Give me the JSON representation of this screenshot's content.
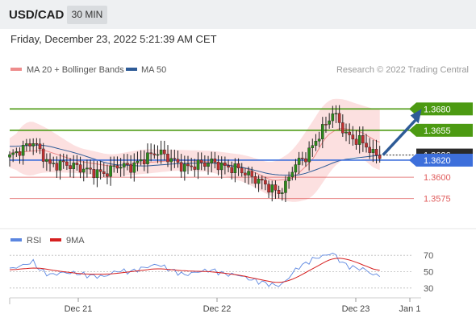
{
  "header": {
    "symbol": "USD/CAD",
    "timeframe": "30 MIN",
    "timestamp": "Friday, December 23, 2022 5:21:39 AM CET"
  },
  "colors": {
    "ma20": "#ee8c8c",
    "bollinger": "#fbdada",
    "ma50": "#2e5b97",
    "resistance": "#4c9a12",
    "support": "#e05c5c",
    "pivot": "#3d6fdb",
    "arrow": "#2e5b97",
    "bull": "#2d8a1a",
    "bear": "#c03030",
    "rsi": "#5b86e0",
    "rsi_ma": "#d62020"
  },
  "chart_data": [
    {
      "type": "candlestick",
      "title": "USD/CAD 30 MIN",
      "legend": [
        {
          "name": "MA 20 + Bollinger Bands",
          "color": "#ee8c8c"
        },
        {
          "name": "MA 50",
          "color": "#2e5b97"
        }
      ],
      "legend_position": "top-left",
      "credit": "Research © 2022 Trading Central",
      "y_range": [
        1.3553,
        1.3702
      ],
      "levels": [
        {
          "label": "1.3680",
          "value": 1.368,
          "type": "resistance"
        },
        {
          "label": "1.3655",
          "value": 1.3655,
          "type": "resistance"
        },
        {
          "label": "1.3626",
          "value": 1.3626,
          "type": "last"
        },
        {
          "label": "1.3620",
          "value": 1.362,
          "type": "pivot"
        },
        {
          "label": "1.3600",
          "value": 1.36,
          "type": "support"
        },
        {
          "label": "1.3575",
          "value": 1.3575,
          "type": "support"
        }
      ],
      "x_ticks": [
        "Dec 21",
        "Dec 22",
        "Dec 23",
        "Jan 1"
      ],
      "anchors": [
        [
          0,
          1.3624
        ],
        [
          4,
          1.3634
        ],
        [
          7,
          1.3642
        ],
        [
          9,
          1.363
        ],
        [
          12,
          1.3614
        ],
        [
          16,
          1.3616
        ],
        [
          20,
          1.3612
        ],
        [
          24,
          1.3607
        ],
        [
          28,
          1.3604
        ],
        [
          32,
          1.3614
        ],
        [
          36,
          1.3612
        ],
        [
          40,
          1.3622
        ],
        [
          44,
          1.363
        ],
        [
          48,
          1.3621
        ],
        [
          52,
          1.3611
        ],
        [
          56,
          1.3615
        ],
        [
          60,
          1.3618
        ],
        [
          64,
          1.3612
        ],
        [
          68,
          1.361
        ],
        [
          72,
          1.36
        ],
        [
          75,
          1.3594
        ],
        [
          78,
          1.3586
        ],
        [
          80,
          1.3582
        ],
        [
          82,
          1.359
        ],
        [
          84,
          1.361
        ],
        [
          86,
          1.3619
        ],
        [
          88,
          1.3624
        ],
        [
          90,
          1.3636
        ],
        [
          92,
          1.365
        ],
        [
          94,
          1.3662
        ],
        [
          96,
          1.3676
        ],
        [
          98,
          1.3664
        ],
        [
          100,
          1.365
        ],
        [
          102,
          1.3645
        ],
        [
          104,
          1.3643
        ],
        [
          106,
          1.3637
        ],
        [
          108,
          1.3627
        ],
        [
          110,
          1.3626
        ]
      ],
      "ma20": [
        [
          0,
          1.3628
        ],
        [
          10,
          1.3632
        ],
        [
          20,
          1.3619
        ],
        [
          30,
          1.3613
        ],
        [
          40,
          1.3617
        ],
        [
          50,
          1.362
        ],
        [
          60,
          1.3618
        ],
        [
          70,
          1.3611
        ],
        [
          78,
          1.3596
        ],
        [
          84,
          1.3598
        ],
        [
          90,
          1.362
        ],
        [
          94,
          1.3648
        ],
        [
          98,
          1.3658
        ],
        [
          104,
          1.3654
        ],
        [
          110,
          1.364
        ]
      ],
      "bb_upper": [
        [
          0,
          1.364
        ],
        [
          5,
          1.3668
        ],
        [
          10,
          1.366
        ],
        [
          20,
          1.3635
        ],
        [
          30,
          1.3626
        ],
        [
          40,
          1.3633
        ],
        [
          50,
          1.3632
        ],
        [
          60,
          1.3631
        ],
        [
          70,
          1.3626
        ],
        [
          78,
          1.3616
        ],
        [
          84,
          1.363
        ],
        [
          90,
          1.3665
        ],
        [
          94,
          1.369
        ],
        [
          98,
          1.3693
        ],
        [
          104,
          1.3685
        ],
        [
          110,
          1.3678
        ]
      ],
      "bb_lower": [
        [
          0,
          1.3614
        ],
        [
          5,
          1.36
        ],
        [
          10,
          1.3606
        ],
        [
          20,
          1.3605
        ],
        [
          30,
          1.36
        ],
        [
          40,
          1.3604
        ],
        [
          50,
          1.3608
        ],
        [
          60,
          1.3606
        ],
        [
          70,
          1.3594
        ],
        [
          78,
          1.3577
        ],
        [
          84,
          1.357
        ],
        [
          90,
          1.3575
        ],
        [
          94,
          1.36
        ],
        [
          98,
          1.362
        ],
        [
          104,
          1.3625
        ],
        [
          110,
          1.3605
        ]
      ],
      "ma50": [
        [
          0,
          1.3636
        ],
        [
          10,
          1.3638
        ],
        [
          20,
          1.3628
        ],
        [
          30,
          1.3615
        ],
        [
          40,
          1.3613
        ],
        [
          50,
          1.3616
        ],
        [
          60,
          1.3617
        ],
        [
          70,
          1.3611
        ],
        [
          78,
          1.3603
        ],
        [
          86,
          1.3602
        ],
        [
          92,
          1.361
        ],
        [
          98,
          1.362
        ],
        [
          104,
          1.3623
        ],
        [
          110,
          1.3626
        ]
      ],
      "forecast": {
        "from": 1.3626,
        "to": 1.368,
        "bars": 12
      }
    },
    {
      "type": "line",
      "title": "RSI",
      "series": [
        {
          "name": "RSI",
          "color": "#5b86e0"
        },
        {
          "name": "9MA",
          "color": "#d62020"
        }
      ],
      "y_range": [
        20,
        80
      ],
      "y_ticks": [
        70,
        50,
        30
      ],
      "rsi": [
        [
          0,
          53
        ],
        [
          4,
          58
        ],
        [
          7,
          62
        ],
        [
          9,
          52
        ],
        [
          12,
          46
        ],
        [
          16,
          49
        ],
        [
          20,
          48
        ],
        [
          24,
          45
        ],
        [
          28,
          44
        ],
        [
          32,
          51
        ],
        [
          36,
          50
        ],
        [
          40,
          55
        ],
        [
          44,
          59
        ],
        [
          48,
          52
        ],
        [
          52,
          46
        ],
        [
          56,
          50
        ],
        [
          60,
          52
        ],
        [
          64,
          47
        ],
        [
          68,
          46
        ],
        [
          72,
          40
        ],
        [
          75,
          37
        ],
        [
          78,
          34
        ],
        [
          80,
          33
        ],
        [
          82,
          38
        ],
        [
          84,
          48
        ],
        [
          86,
          56
        ],
        [
          88,
          60
        ],
        [
          90,
          65
        ],
        [
          92,
          68
        ],
        [
          94,
          70
        ],
        [
          96,
          73
        ],
        [
          98,
          64
        ],
        [
          100,
          58
        ],
        [
          102,
          55
        ],
        [
          104,
          54
        ],
        [
          106,
          52
        ],
        [
          108,
          46
        ],
        [
          110,
          46
        ]
      ],
      "rsi_ma": [
        [
          0,
          52
        ],
        [
          8,
          55
        ],
        [
          14,
          51
        ],
        [
          22,
          47
        ],
        [
          30,
          47
        ],
        [
          38,
          51
        ],
        [
          44,
          54
        ],
        [
          52,
          51
        ],
        [
          60,
          50
        ],
        [
          68,
          46
        ],
        [
          76,
          39
        ],
        [
          80,
          36
        ],
        [
          84,
          40
        ],
        [
          88,
          49
        ],
        [
          92,
          58
        ],
        [
          96,
          67
        ],
        [
          100,
          66
        ],
        [
          104,
          60
        ],
        [
          110,
          50
        ]
      ]
    }
  ]
}
